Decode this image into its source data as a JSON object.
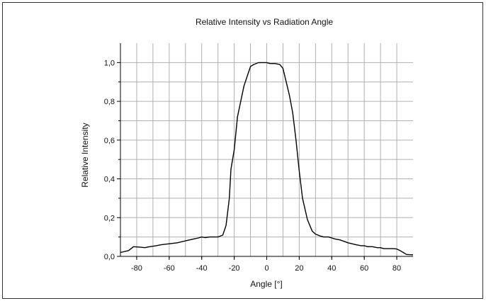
{
  "chart_data": {
    "type": "line",
    "title": "Relative Intensity vs Radiation Angle",
    "xlabel": "Angle [°]",
    "ylabel": "Relative  Intensity",
    "xlim": [
      -90,
      90
    ],
    "ylim": [
      0,
      1.1
    ],
    "grid": true,
    "x_ticks": [
      -80,
      -60,
      -40,
      -20,
      0,
      20,
      40,
      60,
      80
    ],
    "x_tick_labels": [
      "-80",
      "-60",
      "-40",
      "-20",
      "0",
      "20",
      "40",
      "60",
      "80"
    ],
    "y_ticks": [
      0,
      0.2,
      0.4,
      0.6,
      0.8,
      1.0
    ],
    "y_tick_labels": [
      "0,0",
      "0,2",
      "0,4",
      "0,6",
      "0,8",
      "1,0"
    ],
    "series": [
      {
        "color": "#000000",
        "x": [
          -90,
          -85,
          -82,
          -78,
          -75,
          -72,
          -68,
          -65,
          -60,
          -55,
          -50,
          -45,
          -42,
          -40,
          -38,
          -35,
          -30,
          -27,
          -25,
          -23,
          -22,
          -20,
          -18,
          -16,
          -14,
          -12,
          -10,
          -8,
          -5,
          -2,
          0,
          2,
          5,
          8,
          10,
          12,
          14,
          16,
          18,
          20,
          22,
          25,
          28,
          30,
          33,
          35,
          38,
          40,
          42,
          45,
          50,
          55,
          58,
          60,
          62,
          65,
          68,
          70,
          72,
          75,
          78,
          80,
          82,
          84,
          86,
          90
        ],
        "y": [
          0.02,
          0.03,
          0.05,
          0.048,
          0.045,
          0.05,
          0.055,
          0.06,
          0.065,
          0.07,
          0.08,
          0.09,
          0.095,
          0.1,
          0.097,
          0.1,
          0.1,
          0.11,
          0.16,
          0.3,
          0.45,
          0.55,
          0.72,
          0.8,
          0.88,
          0.93,
          0.98,
          0.99,
          1.0,
          1.0,
          1.0,
          0.995,
          0.995,
          0.99,
          0.97,
          0.9,
          0.83,
          0.74,
          0.6,
          0.44,
          0.3,
          0.19,
          0.13,
          0.115,
          0.105,
          0.1,
          0.1,
          0.095,
          0.09,
          0.085,
          0.07,
          0.06,
          0.055,
          0.055,
          0.05,
          0.05,
          0.045,
          0.045,
          0.04,
          0.04,
          0.04,
          0.038,
          0.03,
          0.02,
          0.01,
          0.008
        ]
      }
    ]
  }
}
